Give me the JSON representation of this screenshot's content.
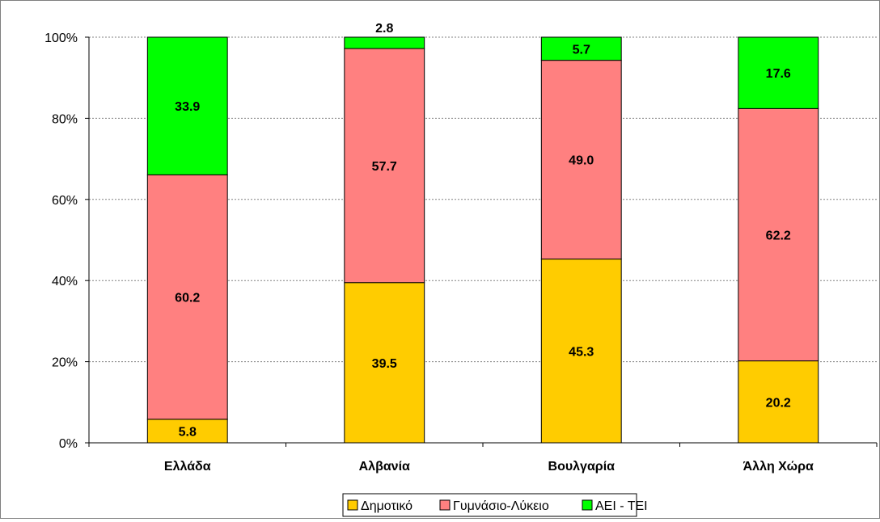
{
  "chart_data": {
    "type": "bar",
    "stacked": "percent",
    "categories": [
      "Ελλάδα",
      "Αλβανία",
      "Βουλγαρία",
      "Άλλη Χώρα"
    ],
    "series": [
      {
        "name": "Δημοτικό",
        "color": "#FFCC00",
        "values": [
          5.8,
          39.5,
          45.3,
          20.2
        ]
      },
      {
        "name": "Γυμνάσιο-Λύκειο",
        "color": "#FF8080",
        "values": [
          60.2,
          57.7,
          49.0,
          62.2
        ]
      },
      {
        "name": "ΑΕΙ - ΤΕΙ",
        "color": "#00FF00",
        "values": [
          33.9,
          2.8,
          5.7,
          17.6
        ]
      }
    ],
    "value_labels": [
      [
        "5.8",
        "39.5",
        "45.3",
        "20.2"
      ],
      [
        "60.2",
        "57.7",
        "49.0",
        "62.2"
      ],
      [
        "33.9",
        "2.8",
        "5.7",
        "17.6"
      ]
    ],
    "y_ticks": [
      "0%",
      "20%",
      "40%",
      "60%",
      "80%",
      "100%"
    ],
    "ylim": [
      0,
      100
    ],
    "grid": true,
    "legend_position": "bottom"
  }
}
